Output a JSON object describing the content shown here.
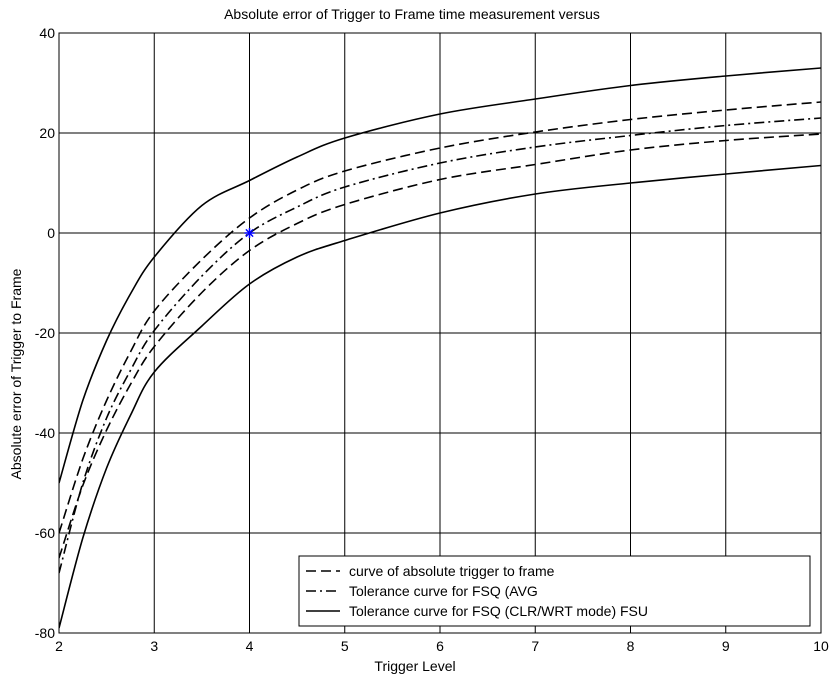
{
  "chart_data": {
    "type": "line",
    "title": "Absolute error of Trigger to Frame time measurement versus",
    "xlabel": "Trigger Level",
    "ylabel": "Absolute error of Trigger to Frame",
    "xlim": [
      2,
      10
    ],
    "ylim": [
      -80,
      40
    ],
    "x_ticks": [
      2,
      3,
      4,
      5,
      6,
      7,
      8,
      9,
      10
    ],
    "y_ticks": [
      -80,
      -60,
      -40,
      -20,
      0,
      20,
      40
    ],
    "x_tick_labels": [
      "2",
      "3",
      "4",
      "5",
      "6",
      "7",
      "8",
      "9",
      "10"
    ],
    "y_tick_labels": [
      "-80",
      "-60",
      "-40",
      "-20",
      "0",
      "20",
      "40"
    ],
    "grid": true,
    "legend_position": "bottom-right",
    "legend": [
      {
        "label": "curve of absolute trigger to frame",
        "style": "dashed"
      },
      {
        "label": "Tolerance curve for FSQ (AVG",
        "style": "dashdot"
      },
      {
        "label": "Tolerance curve for FSQ (CLR/WRT mode) FSU",
        "style": "solid"
      }
    ],
    "series": [
      {
        "style": "dashed",
        "values": [
          {
            "x": 2,
            "y": -60
          },
          {
            "x": 2.25,
            "y": -45.2
          },
          {
            "x": 2.5,
            "y": -33.5
          },
          {
            "x": 2.75,
            "y": -23.8
          },
          {
            "x": 3,
            "y": -15.6
          },
          {
            "x": 3.5,
            "y": -5.3
          },
          {
            "x": 4,
            "y": 3.0
          },
          {
            "x": 4.5,
            "y": 8.6
          },
          {
            "x": 5,
            "y": 12.4
          },
          {
            "x": 6,
            "y": 17.0
          },
          {
            "x": 7,
            "y": 20.2
          },
          {
            "x": 8,
            "y": 22.7
          },
          {
            "x": 9,
            "y": 24.6
          },
          {
            "x": 10,
            "y": 26.2
          }
        ]
      },
      {
        "style": "dashed",
        "values": [
          {
            "x": 2,
            "y": -65
          },
          {
            "x": 2.25,
            "y": -50.5
          },
          {
            "x": 2.5,
            "y": -39.4
          },
          {
            "x": 2.75,
            "y": -30.3
          },
          {
            "x": 3,
            "y": -22.7
          },
          {
            "x": 3.5,
            "y": -11.9
          },
          {
            "x": 4,
            "y": -3.5
          },
          {
            "x": 4.5,
            "y": 1.9
          },
          {
            "x": 5,
            "y": 5.7
          },
          {
            "x": 6,
            "y": 10.7
          },
          {
            "x": 7,
            "y": 13.7
          },
          {
            "x": 8,
            "y": 16.6
          },
          {
            "x": 9,
            "y": 18.5
          },
          {
            "x": 10,
            "y": 19.8
          }
        ]
      },
      {
        "style": "dashdot",
        "values": [
          {
            "x": 2,
            "y": -68
          },
          {
            "x": 2.25,
            "y": -50
          },
          {
            "x": 2.5,
            "y": -37
          },
          {
            "x": 2.75,
            "y": -27.5
          },
          {
            "x": 3,
            "y": -19.5
          },
          {
            "x": 3.5,
            "y": -8.6
          },
          {
            "x": 4,
            "y": 0
          },
          {
            "x": 4.5,
            "y": 5.2
          },
          {
            "x": 5,
            "y": 9.2
          },
          {
            "x": 6,
            "y": 14.0
          },
          {
            "x": 7,
            "y": 17.2
          },
          {
            "x": 8,
            "y": 19.5
          },
          {
            "x": 9,
            "y": 21.5
          },
          {
            "x": 10,
            "y": 23.0
          }
        ]
      },
      {
        "style": "solid",
        "values": [
          {
            "x": 2,
            "y": -50
          },
          {
            "x": 2.25,
            "y": -33.5
          },
          {
            "x": 2.5,
            "y": -21.5
          },
          {
            "x": 2.75,
            "y": -12.2
          },
          {
            "x": 3,
            "y": -4.8
          },
          {
            "x": 3.5,
            "y": 5.5
          },
          {
            "x": 4,
            "y": 10.5
          },
          {
            "x": 4.5,
            "y": 15.2
          },
          {
            "x": 5,
            "y": 19.0
          },
          {
            "x": 6,
            "y": 23.8
          },
          {
            "x": 7,
            "y": 26.8
          },
          {
            "x": 8,
            "y": 29.5
          },
          {
            "x": 9,
            "y": 31.4
          },
          {
            "x": 10,
            "y": 33.0
          }
        ]
      },
      {
        "style": "solid",
        "values": [
          {
            "x": 2,
            "y": -79
          },
          {
            "x": 2.25,
            "y": -61
          },
          {
            "x": 2.5,
            "y": -47
          },
          {
            "x": 2.75,
            "y": -36.5
          },
          {
            "x": 3,
            "y": -27.8
          },
          {
            "x": 3.5,
            "y": -18.6
          },
          {
            "x": 4,
            "y": -10.2
          },
          {
            "x": 4.5,
            "y": -4.8
          },
          {
            "x": 5,
            "y": -1.5
          },
          {
            "x": 6,
            "y": 4.0
          },
          {
            "x": 7,
            "y": 7.8
          },
          {
            "x": 8,
            "y": 10.0
          },
          {
            "x": 9,
            "y": 11.8
          },
          {
            "x": 10,
            "y": 13.5
          }
        ]
      }
    ],
    "marker": {
      "x": 4,
      "y": 0,
      "symbol": "star",
      "color": "#0000ff"
    }
  }
}
